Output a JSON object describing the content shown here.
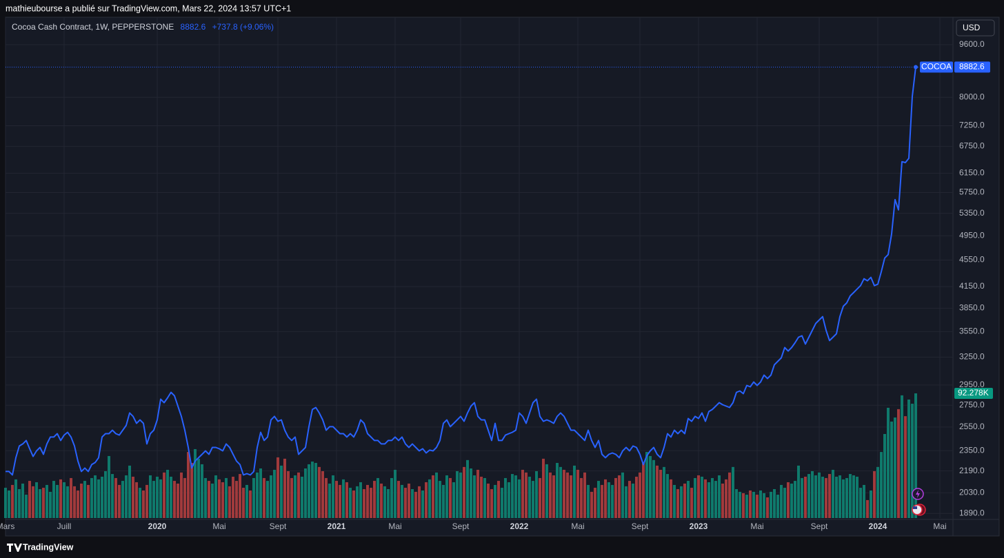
{
  "header": "mathieubourse a publié sur TradingView.com, Mars 22, 2024 13:57 UTC+1",
  "footer": "TradingView",
  "currency": "USD",
  "chart_data": {
    "type": "line",
    "title": "Cocoa Cash Contract, 1W, PEPPERSTONE",
    "change": "+737.8 (+9.06%)",
    "log_scale": true,
    "grid": true,
    "categories": [
      "Mars",
      null,
      null,
      null,
      null,
      null,
      null,
      null,
      null,
      null,
      null,
      null,
      null,
      null,
      null,
      null,
      null,
      "Juill",
      null,
      null,
      null,
      null,
      null,
      null,
      null,
      null,
      null,
      null,
      null,
      null,
      null,
      null,
      null,
      null,
      null,
      null,
      null,
      null,
      null,
      null,
      null,
      null,
      null,
      null,
      "2020",
      null,
      null,
      null,
      null,
      null,
      null,
      null,
      null,
      null,
      null,
      null,
      null,
      null,
      null,
      null,
      null,
      null,
      "Mai",
      null,
      null,
      null,
      null,
      null,
      null,
      null,
      null,
      null,
      null,
      null,
      null,
      null,
      null,
      null,
      null,
      "Sept",
      null,
      null,
      null,
      null,
      null,
      null,
      null,
      null,
      null,
      null,
      null,
      null,
      null,
      null,
      null,
      null,
      "2021",
      null,
      null,
      null,
      null,
      null,
      null,
      null,
      null,
      null,
      null,
      null,
      null,
      null,
      null,
      null,
      null,
      "Mai",
      null,
      null,
      null,
      null,
      null,
      null,
      null,
      null,
      null,
      null,
      null,
      null,
      null,
      null,
      null,
      null,
      null,
      null,
      "Sept",
      null,
      null,
      null,
      null,
      null,
      null,
      null,
      null,
      null,
      null,
      null,
      null,
      null,
      null,
      null,
      null,
      "2022",
      null,
      null,
      null,
      null,
      null,
      null,
      null,
      null,
      null,
      null,
      null,
      null,
      null,
      null,
      null,
      null,
      "Mai",
      null,
      null,
      null,
      null,
      null,
      null,
      null,
      null,
      null,
      null,
      null,
      null,
      null,
      null,
      null,
      null,
      null,
      "Sept",
      null,
      null,
      null,
      null,
      null,
      null,
      null,
      null,
      null,
      null,
      null,
      null,
      null,
      null,
      null,
      null,
      "2023",
      null,
      null,
      null,
      null,
      null,
      null,
      null,
      null,
      null,
      null,
      null,
      null,
      null,
      null,
      null,
      null,
      "Mai",
      null,
      null,
      null,
      null,
      null,
      null,
      null,
      null,
      null,
      null,
      null,
      null,
      null,
      null,
      null,
      null,
      null,
      "Sept",
      null,
      null,
      null,
      null,
      null,
      null,
      null,
      null,
      null,
      null,
      null,
      null,
      null,
      null,
      null,
      null,
      "2024",
      null,
      null,
      null,
      null,
      null,
      null,
      null,
      null,
      null,
      null,
      null,
      null,
      null,
      null,
      null,
      null,
      null,
      "Mai"
    ],
    "series": [
      {
        "name": "COCOA",
        "color": "#2962ff",
        "values": [
          2186,
          2186,
          2160,
          2293,
          2388,
          2405,
          2434,
          2365,
          2303,
          2348,
          2376,
          2320,
          2405,
          2463,
          2463,
          2492,
          2434,
          2480,
          2504,
          2463,
          2388,
          2266,
          2186,
          2212,
          2186,
          2239,
          2255,
          2293,
          2463,
          2492,
          2492,
          2522,
          2492,
          2480,
          2522,
          2565,
          2678,
          2646,
          2583,
          2614,
          2583,
          2405,
          2492,
          2522,
          2614,
          2809,
          2775,
          2822,
          2876,
          2842,
          2742,
          2646,
          2522,
          2376,
          2212,
          2266,
          2293,
          2320,
          2348,
          2320,
          2376,
          2376,
          2365,
          2348,
          2405,
          2376,
          2320,
          2266,
          2239,
          2160,
          2170,
          2160,
          2186,
          2376,
          2504,
          2434,
          2463,
          2614,
          2646,
          2601,
          2614,
          2522,
          2463,
          2434,
          2463,
          2320,
          2348,
          2376,
          2553,
          2710,
          2729,
          2678,
          2614,
          2522,
          2553,
          2553,
          2522,
          2492,
          2492,
          2463,
          2492,
          2463,
          2522,
          2614,
          2583,
          2492,
          2463,
          2434,
          2434,
          2405,
          2405,
          2434,
          2434,
          2463,
          2434,
          2463,
          2405,
          2376,
          2405,
          2376,
          2348,
          2365,
          2331,
          2354,
          2348,
          2376,
          2434,
          2583,
          2614,
          2553,
          2583,
          2614,
          2646,
          2601,
          2678,
          2742,
          2775,
          2646,
          2614,
          2614,
          2522,
          2434,
          2583,
          2434,
          2434,
          2480,
          2492,
          2504,
          2522,
          2678,
          2646,
          2583,
          2678,
          2775,
          2809,
          2646,
          2601,
          2614,
          2601,
          2583,
          2646,
          2678,
          2646,
          2583,
          2522,
          2522,
          2492,
          2463,
          2434,
          2522,
          2434,
          2376,
          2434,
          2320,
          2293,
          2320,
          2331,
          2320,
          2293,
          2348,
          2376,
          2348,
          2388,
          2376,
          2320,
          2239,
          2309,
          2348,
          2376,
          2320,
          2293,
          2376,
          2492,
          2463,
          2522,
          2492,
          2522,
          2492,
          2627,
          2601,
          2646,
          2627,
          2678,
          2601,
          2691,
          2710,
          2742,
          2775,
          2755,
          2742,
          2729,
          2775,
          2876,
          2890,
          2863,
          2946,
          2932,
          2981,
          2946,
          2981,
          3053,
          3017,
          3053,
          3165,
          3203,
          3241,
          3359,
          3319,
          3359,
          3416,
          3482,
          3499,
          3400,
          3482,
          3566,
          3652,
          3696,
          3740,
          3566,
          3441,
          3482,
          3524,
          3740,
          3877,
          3923,
          4018,
          4066,
          4115,
          4164,
          4265,
          4234,
          4285,
          4164,
          4184,
          4368,
          4581,
          4636,
          4980,
          5611,
          5414,
          6399,
          6380,
          6475,
          8026,
          8882.6,
          null,
          null,
          null,
          null,
          null,
          null,
          null
        ]
      }
    ],
    "volume": {
      "up_color": "#0f7a6c",
      "down_color": "#a13a3c",
      "values": [
        22400,
        20400,
        24500,
        28600,
        21400,
        25500,
        17300,
        27500,
        23500,
        26500,
        21400,
        22400,
        24500,
        19400,
        27500,
        24500,
        28600,
        26500,
        23500,
        29600,
        23500,
        20400,
        25500,
        27500,
        24500,
        29600,
        31600,
        28600,
        30600,
        34700,
        45900,
        32600,
        29600,
        24500,
        27500,
        31600,
        38800,
        30600,
        26500,
        22400,
        20400,
        24500,
        31600,
        27500,
        30600,
        28600,
        33700,
        35700,
        30600,
        27500,
        25500,
        33700,
        29600,
        48900,
        40800,
        51000,
        43900,
        39800,
        29600,
        27500,
        25500,
        31600,
        28600,
        26500,
        29600,
        23500,
        30600,
        27500,
        32600,
        22400,
        24500,
        20400,
        29600,
        33700,
        36700,
        29600,
        27500,
        31600,
        35700,
        44900,
        38800,
        43900,
        34700,
        29600,
        31600,
        33700,
        30600,
        36700,
        39800,
        41800,
        40800,
        37800,
        34700,
        29600,
        25500,
        31600,
        27500,
        24500,
        28600,
        26500,
        22400,
        20400,
        23500,
        26500,
        21400,
        24500,
        22400,
        27500,
        29600,
        25500,
        23500,
        21400,
        29600,
        35700,
        27500,
        24500,
        22400,
        25500,
        21400,
        19400,
        23500,
        20400,
        26500,
        28600,
        31600,
        33700,
        27500,
        24500,
        31600,
        29600,
        26500,
        34700,
        33700,
        37800,
        42900,
        36700,
        31600,
        35700,
        30600,
        29600,
        25500,
        21400,
        24500,
        27500,
        22400,
        29600,
        26500,
        32600,
        31600,
        28600,
        35700,
        33700,
        30600,
        27500,
        34700,
        29600,
        43900,
        39800,
        33700,
        31600,
        40800,
        37800,
        35700,
        33700,
        31600,
        38800,
        35700,
        29600,
        33700,
        24500,
        19400,
        22400,
        27500,
        24500,
        28600,
        26500,
        24500,
        29600,
        31600,
        33700,
        23500,
        27500,
        25500,
        30600,
        33700,
        40800,
        48900,
        45900,
        42900,
        38800,
        35700,
        37800,
        32600,
        28600,
        24500,
        21400,
        23500,
        25500,
        27500,
        22400,
        29600,
        31600,
        30600,
        28600,
        26500,
        29600,
        27500,
        31600,
        25500,
        28600,
        33700,
        37800,
        21400,
        19400,
        18400,
        17300,
        20400,
        19400,
        17300,
        20400,
        18400,
        15300,
        19400,
        21400,
        17300,
        24500,
        22400,
        26500,
        25500,
        27500,
        38800,
        29600,
        30600,
        32600,
        34700,
        31600,
        33700,
        30600,
        29600,
        32600,
        35700,
        30600,
        31600,
        28600,
        29600,
        32600,
        31600,
        30600,
        22400,
        24500,
        13300,
        20400,
        34700,
        37800,
        48900,
        62200,
        81600,
        71400,
        74400,
        80600,
        90800,
        75400,
        87700,
        84600,
        92278,
        null,
        null,
        null,
        null,
        null,
        null,
        null
      ]
    },
    "volume_label": {
      "value": 92278,
      "label": "92.278K"
    },
    "ylim": [
      1860,
      10560
    ],
    "yticks": [
      {
        "value": 9600,
        "label": "9600.0"
      },
      {
        "value": 8000,
        "label": "8000.0"
      },
      {
        "value": 7250,
        "label": "7250.0"
      },
      {
        "value": 6750,
        "label": "6750.0"
      },
      {
        "value": 6150,
        "label": "6150.0"
      },
      {
        "value": 5750,
        "label": "5750.0"
      },
      {
        "value": 5350,
        "label": "5350.0"
      },
      {
        "value": 4950,
        "label": "4950.0"
      },
      {
        "value": 4550,
        "label": "4550.0"
      },
      {
        "value": 4150,
        "label": "4150.0"
      },
      {
        "value": 3850,
        "label": "3850.0"
      },
      {
        "value": 3550,
        "label": "3550.0"
      },
      {
        "value": 3250,
        "label": "3250.0"
      },
      {
        "value": 2950,
        "label": "2950.0"
      },
      {
        "value": 2750,
        "label": "2750.0"
      },
      {
        "value": 2550,
        "label": "2550.0"
      },
      {
        "value": 2350,
        "label": "2350.0"
      },
      {
        "value": 2190,
        "label": "2190.0"
      },
      {
        "value": 2030,
        "label": "2030.0"
      },
      {
        "value": 1890,
        "label": "1890.0"
      }
    ]
  }
}
